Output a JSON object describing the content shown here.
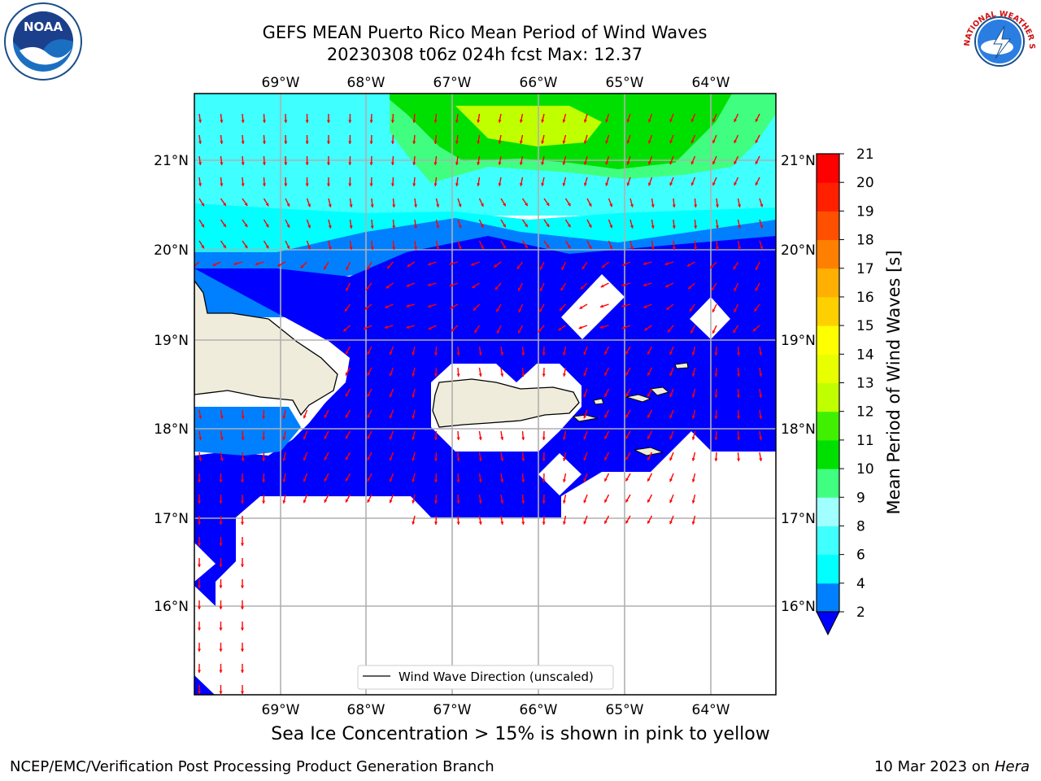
{
  "title": {
    "line1": "GEFS MEAN Puerto Rico Mean Period of Wind Waves",
    "line2": "20230308 t06z 024h fcst    Max: 12.37"
  },
  "map": {
    "lon_ticks": [
      "69°W",
      "68°W",
      "67°W",
      "66°W",
      "65°W",
      "64°W"
    ],
    "lat_ticks": [
      "21°N",
      "20°N",
      "19°N",
      "18°N",
      "17°N",
      "16°N"
    ],
    "legend_label": "Wind Wave Direction (unscaled)",
    "vector_color": "#ff0000",
    "land_color": "#efecdc"
  },
  "colorbar": {
    "label": "Mean Period of Wind Waves [s]",
    "ticks": [
      "2",
      "4",
      "6",
      "8",
      "9",
      "10",
      "11",
      "12",
      "13",
      "14",
      "15",
      "16",
      "17",
      "18",
      "19",
      "20",
      "21"
    ],
    "colors": [
      "#0000ff",
      "#0080ff",
      "#00ffff",
      "#40ffff",
      "#a0ffff",
      "#40ff80",
      "#00e000",
      "#40f000",
      "#c0ff00",
      "#e8ff00",
      "#ffff00",
      "#ffd000",
      "#ffb000",
      "#ff8000",
      "#ff5000",
      "#ff2000",
      "#ff0000"
    ]
  },
  "note": "Sea Ice Concentration > 15% is shown in pink to yellow",
  "footer": {
    "left": "NCEP/EMC/Verification Post Processing Product Generation Branch",
    "right_prefix": "10 Mar 2023 on ",
    "right_host": "Hera"
  },
  "logos": {
    "noaa_text": "NOAA",
    "nws_text": "NATIONAL WEATHER SERVICE"
  }
}
